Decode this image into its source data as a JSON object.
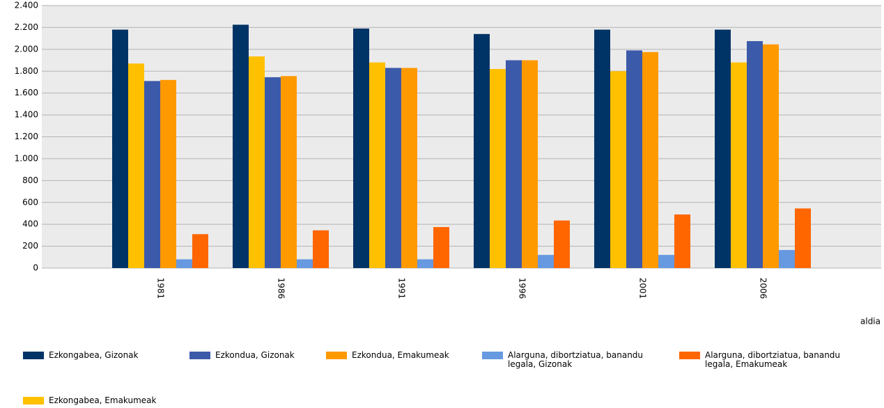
{
  "chart_data": {
    "type": "bar",
    "x_label": "aldia",
    "categories": [
      "1981",
      "1986",
      "1991",
      "1996",
      "2001",
      "2006"
    ],
    "series": [
      {
        "name": "Ezkongabea, Gizonak",
        "color": "#003366",
        "values": [
          2180,
          2225,
          2190,
          2140,
          2180,
          2180
        ]
      },
      {
        "name": "Ezkongabea, Emakumeak",
        "color": "#ffc000",
        "values": [
          1870,
          1935,
          1880,
          1820,
          1800,
          1880
        ]
      },
      {
        "name": "Ezkondua, Gizonak",
        "color": "#3c5aaa",
        "values": [
          1710,
          1745,
          1830,
          1900,
          1990,
          2075
        ]
      },
      {
        "name": "Ezkondua, Emakumeak",
        "color": "#ff9900",
        "values": [
          1720,
          1755,
          1830,
          1900,
          1975,
          2045
        ]
      },
      {
        "name": "Alarguna, dibortziatua, banandu legala, Gizonak",
        "color": "#6699e0",
        "values": [
          80,
          80,
          80,
          120,
          120,
          165
        ]
      },
      {
        "name": "Alarguna, dibortziatua, banandu legala, Emakumeak",
        "color": "#ff6600",
        "values": [
          310,
          345,
          375,
          435,
          490,
          545
        ]
      }
    ],
    "ylim": [
      0,
      2400
    ],
    "yticks": [
      0,
      200,
      400,
      600,
      800,
      {
        "value": 1000,
        "label": "1.000"
      },
      {
        "value": 1200,
        "label": "1.200"
      },
      {
        "value": 1400,
        "label": "1.400"
      },
      {
        "value": 1600,
        "label": "1.600"
      },
      {
        "value": 1800,
        "label": "1.800"
      },
      {
        "value": 2000,
        "label": "2.000"
      },
      {
        "value": 2200,
        "label": "2.200"
      },
      {
        "value": 2400,
        "label": "2.400"
      }
    ],
    "grid": true
  }
}
